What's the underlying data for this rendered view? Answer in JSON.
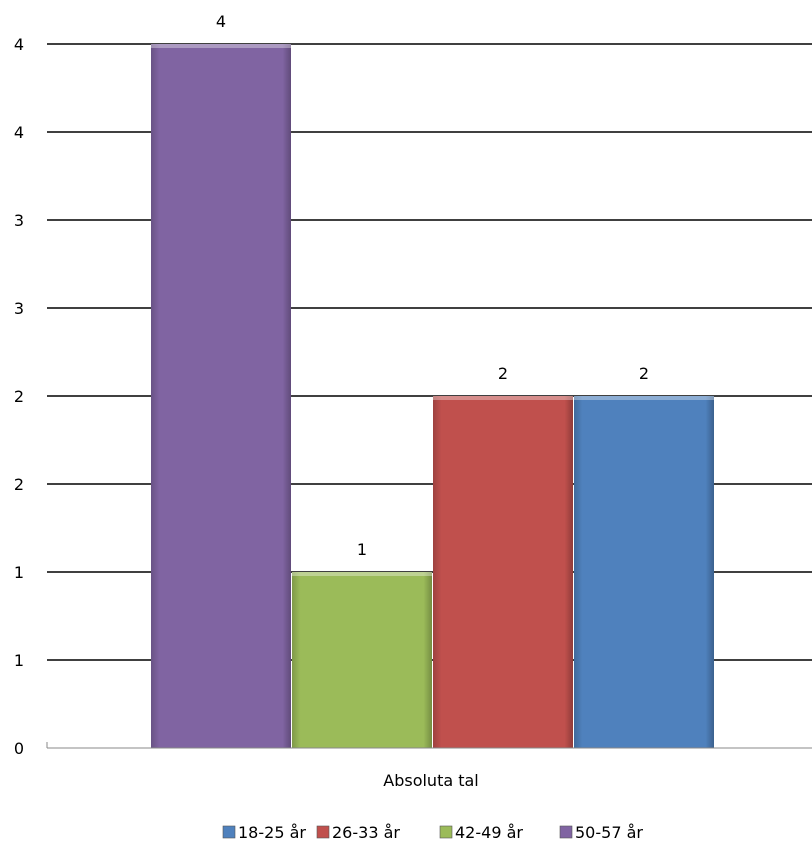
{
  "chart_data": {
    "type": "bar",
    "categories": [
      "Absoluta tal"
    ],
    "series": [
      {
        "name": "50-57 år",
        "values": [
          4
        ],
        "color": "#8064A2",
        "data_label": "4"
      },
      {
        "name": "42-49 år",
        "values": [
          1
        ],
        "color": "#9BBB59",
        "data_label": "1"
      },
      {
        "name": "26-33 år",
        "values": [
          2
        ],
        "color": "#C0504D",
        "data_label": "2"
      },
      {
        "name": "18-25 år",
        "values": [
          2
        ],
        "color": "#4F81BD",
        "data_label": "2"
      }
    ],
    "y_tick_labels": [
      "0",
      "1",
      "1",
      "2",
      "2",
      "3",
      "3",
      "4",
      "4"
    ],
    "ylim": [
      0,
      4
    ],
    "grid": true,
    "legend": {
      "placement": "bottom",
      "entries": [
        {
          "label": "18-25 år",
          "color": "#4F81BD"
        },
        {
          "label": "26-33 år",
          "color": "#C0504D"
        },
        {
          "label": "42-49 år",
          "color": "#9BBB59"
        },
        {
          "label": "50-57 år",
          "color": "#8064A2"
        }
      ]
    }
  }
}
